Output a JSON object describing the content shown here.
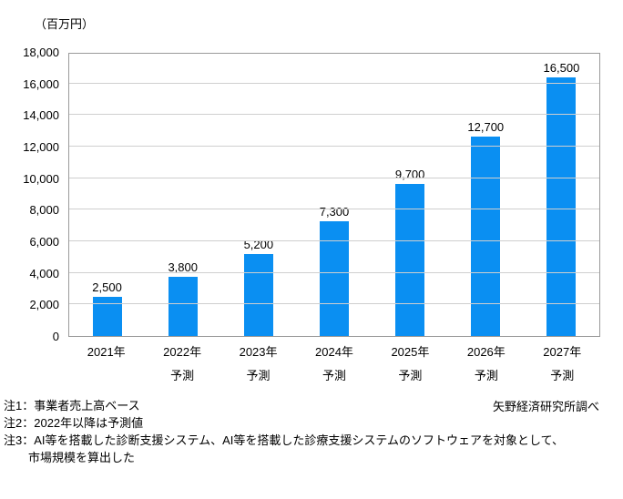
{
  "unit_label": "（百万円）",
  "source": "矢野経済研究所調べ",
  "notes": [
    "注1：事業者売上高ベース",
    "注2：2022年以降は予測値",
    "注3：AI等を搭載した診断支援システム、AI等を搭載した診療支援システムのソフトウェアを対象として、",
    "市場規模を算出した"
  ],
  "chart_data": {
    "type": "bar",
    "categories": [
      "2021年",
      "2022年",
      "2023年",
      "2024年",
      "2025年",
      "2026年",
      "2027年"
    ],
    "category_sublabels": [
      "",
      "予測",
      "予測",
      "予測",
      "予測",
      "予測",
      "予測"
    ],
    "values": [
      2500,
      3800,
      5200,
      7300,
      9700,
      12700,
      16500
    ],
    "value_labels": [
      "2,500",
      "3,800",
      "5,200",
      "7,300",
      "9,700",
      "12,700",
      "16,500"
    ],
    "title": "",
    "xlabel": "",
    "ylabel": "（百万円）",
    "ylim": [
      0,
      18000
    ],
    "ytick_interval": 2000,
    "ytick_labels": [
      "0",
      "2,000",
      "4,000",
      "6,000",
      "8,000",
      "10,000",
      "12,000",
      "14,000",
      "16,000",
      "18,000"
    ],
    "grid": "horizontal",
    "legend": "none",
    "bar_color": "#0a8ff2"
  }
}
